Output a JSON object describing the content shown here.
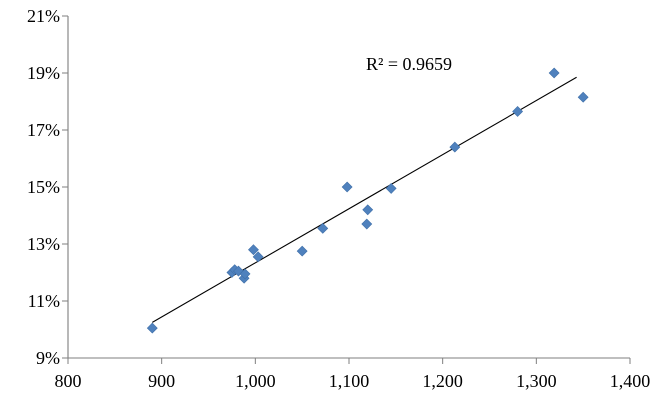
{
  "chart_data": {
    "type": "scatter",
    "title": "",
    "xlabel": "",
    "ylabel": "",
    "xlim": [
      800,
      1400
    ],
    "ylim": [
      9,
      21
    ],
    "x_ticks": [
      800,
      900,
      1000,
      1100,
      1200,
      1300,
      1400
    ],
    "x_tick_labels": [
      "800",
      "900",
      "1,000",
      "1,100",
      "1,200",
      "1,300",
      "1,400"
    ],
    "y_ticks": [
      9,
      11,
      13,
      15,
      17,
      19,
      21
    ],
    "y_tick_labels": [
      "9%",
      "11%",
      "13%",
      "15%",
      "17%",
      "19%",
      "21%"
    ],
    "grid": false,
    "legend": "none",
    "marker": "diamond",
    "marker_color": "#4f81bd",
    "series": [
      {
        "points": [
          {
            "x": 890,
            "y": 10.05
          },
          {
            "x": 975,
            "y": 12.0
          },
          {
            "x": 978,
            "y": 12.1
          },
          {
            "x": 982,
            "y": 12.05
          },
          {
            "x": 988,
            "y": 11.8
          },
          {
            "x": 989,
            "y": 11.95
          },
          {
            "x": 998,
            "y": 12.8
          },
          {
            "x": 1003,
            "y": 12.55
          },
          {
            "x": 1050,
            "y": 12.75
          },
          {
            "x": 1072,
            "y": 13.55
          },
          {
            "x": 1098,
            "y": 15.0
          },
          {
            "x": 1119,
            "y": 13.7
          },
          {
            "x": 1120,
            "y": 14.2
          },
          {
            "x": 1145,
            "y": 14.95
          },
          {
            "x": 1213,
            "y": 16.4
          },
          {
            "x": 1280,
            "y": 17.65
          },
          {
            "x": 1319,
            "y": 19.0
          },
          {
            "x": 1350,
            "y": 18.15
          }
        ]
      }
    ],
    "trendline": {
      "type": "linear",
      "x_start": 890,
      "y_start": 10.25,
      "x_end": 1343,
      "y_end": 18.85,
      "color": "#000000"
    },
    "annotations": [
      {
        "text": "R² = 0.9659"
      }
    ]
  }
}
